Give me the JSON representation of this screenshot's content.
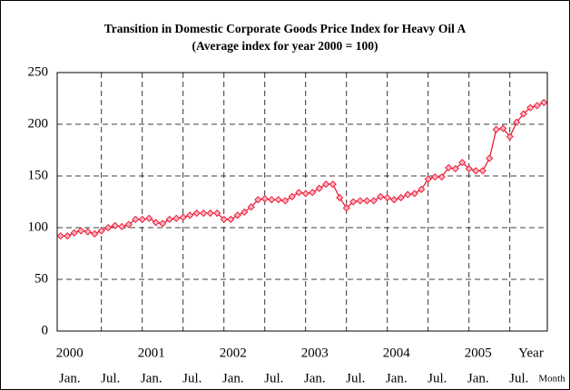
{
  "chart_data": {
    "type": "line",
    "title": "Transition in Domestic Corporate Goods Price Index for Heavy Oil A",
    "subtitle": "(Average index for year 2000 = 100)",
    "categories": [
      "Jan.",
      null,
      null,
      null,
      null,
      null,
      "Jul.",
      null,
      null,
      null,
      null,
      null,
      "Jan.",
      null,
      null,
      null,
      null,
      null,
      "Jul.",
      null,
      null,
      null,
      null,
      null,
      "Jan.",
      null,
      null,
      null,
      null,
      null,
      "Jul.",
      null,
      null,
      null,
      null,
      null,
      "Jan.",
      null,
      null,
      null,
      null,
      null,
      "Jul.",
      null,
      null,
      null,
      null,
      null,
      "Jan.",
      null,
      null,
      null,
      null,
      null,
      "Jul.",
      null,
      null,
      null,
      null,
      null,
      "Jan.",
      null,
      null,
      null,
      null,
      null,
      "Jul.",
      null,
      null,
      null,
      null,
      null
    ],
    "years": [
      "2000",
      "2001",
      "2002",
      "2003",
      "2004",
      "2005"
    ],
    "year_axis_label": "Year",
    "month_axis_label": "Month",
    "series": [
      {
        "name": "Heavy Oil A",
        "color": "#e8102a",
        "marker_fill": "#ffb0c0",
        "values": [
          92,
          92,
          95,
          97,
          96,
          94,
          97,
          100,
          102,
          101,
          103,
          108,
          108,
          109,
          105,
          104,
          108,
          109,
          110,
          112,
          114,
          114,
          114,
          114,
          108,
          108,
          112,
          115,
          120,
          127,
          128,
          127,
          127,
          126,
          130,
          134,
          133,
          134,
          138,
          142,
          142,
          129,
          119,
          125,
          126,
          126,
          126,
          130,
          129,
          127,
          129,
          132,
          133,
          137,
          147,
          149,
          149,
          158,
          157,
          163,
          157,
          155,
          155,
          167,
          195,
          196,
          188,
          202,
          210,
          216,
          218,
          221
        ]
      }
    ],
    "ylim": [
      0,
      250
    ],
    "yticks": [
      0,
      50,
      100,
      150,
      200,
      250
    ],
    "grid": true
  }
}
